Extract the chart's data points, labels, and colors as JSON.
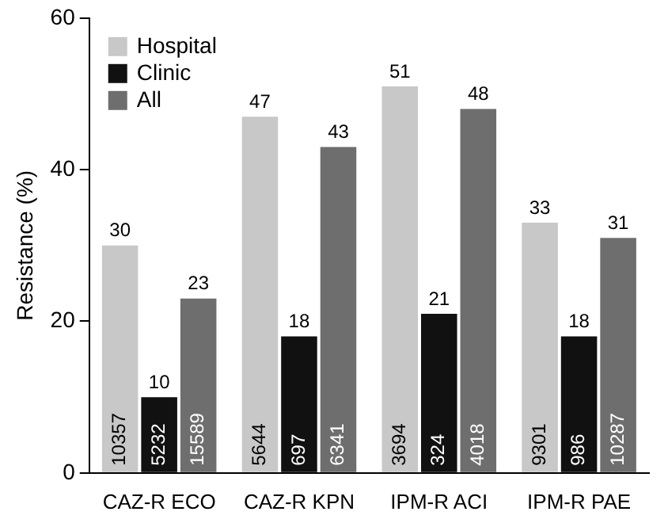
{
  "chart_data": {
    "type": "bar",
    "ylabel": "Resistance (%)",
    "categories": [
      "CAZ-R ECO",
      "CAZ-R KPN",
      "IPM-R ACI",
      "IPM-R PAE"
    ],
    "series": [
      {
        "name": "Hospital",
        "color": "#c8c8c8",
        "values": [
          30,
          47,
          51,
          33
        ]
      },
      {
        "name": "Clinic",
        "color": "#111111",
        "values": [
          10,
          18,
          21,
          18
        ]
      },
      {
        "name": "All",
        "color": "#6e6e6e",
        "values": [
          23,
          43,
          48,
          31
        ]
      }
    ],
    "ylim": [
      0,
      60
    ],
    "yticks": [
      0,
      20,
      40,
      60
    ],
    "grid": false,
    "legend": "top left",
    "data_labels": true,
    "annotations": [
      "10357",
      "5232",
      "15589",
      "5644",
      "697",
      "6341",
      "3694",
      "324",
      "4018",
      "9301",
      "986",
      "10287"
    ]
  }
}
